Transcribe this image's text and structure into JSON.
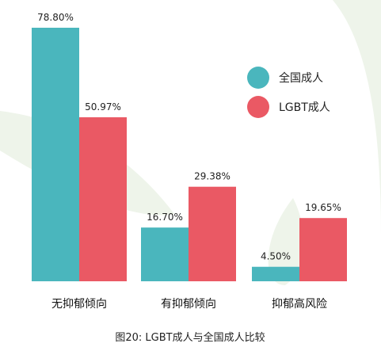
{
  "chart_data": {
    "type": "bar",
    "categories": [
      "无抑郁倾向",
      "有抑郁倾向",
      "抑郁高风险"
    ],
    "series": [
      {
        "name": "全国成人",
        "color": "#4ab6bd",
        "values": [
          78.8,
          16.7,
          4.5
        ],
        "labels": [
          "78.80%",
          "16.70%",
          "4.50%"
        ]
      },
      {
        "name": "LGBT成人",
        "color": "#ea5964",
        "values": [
          50.97,
          29.38,
          19.65
        ],
        "labels": [
          "50.97%",
          "29.38%",
          "19.65%"
        ]
      }
    ],
    "ylim": [
      0,
      80
    ],
    "grid": false,
    "legend_position": "top-right",
    "caption": "图20:  LGBT成人与全国成人比较"
  }
}
